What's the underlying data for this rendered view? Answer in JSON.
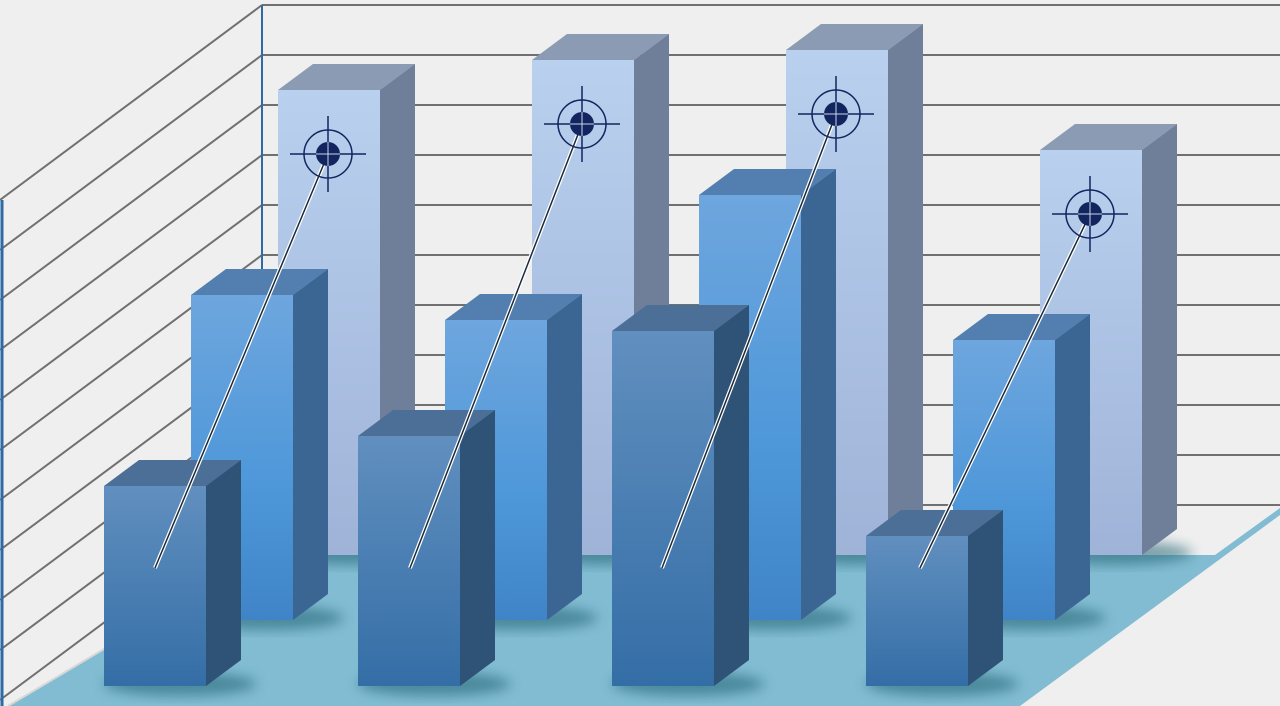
{
  "chart_data": {
    "type": "bar",
    "style": "3d-clustered",
    "title": "",
    "xlabel": "",
    "ylabel": "",
    "grid": true,
    "ylim": [
      0,
      11
    ],
    "categories": [
      "",
      "",
      "",
      ""
    ],
    "series": [
      {
        "row": "back",
        "values": [
          9.3,
          9.9,
          10.1,
          8.1
        ],
        "color": "#b4cbea"
      },
      {
        "row": "middle",
        "values": [
          6.5,
          6.0,
          8.5,
          5.6
        ],
        "color": "#5a9ad8"
      },
      {
        "row": "front",
        "values": [
          4.0,
          5.0,
          7.1,
          3.0
        ],
        "color": "#4a80b8"
      }
    ],
    "annotations": {
      "type": "target-markers",
      "icon": "crosshair-target-icon",
      "marker_color": "#13255e"
    },
    "colors": {
      "wall": "#efefef",
      "gridline": "#707070",
      "floor": "#82bcd2",
      "axis": "#2e6aa6"
    }
  }
}
